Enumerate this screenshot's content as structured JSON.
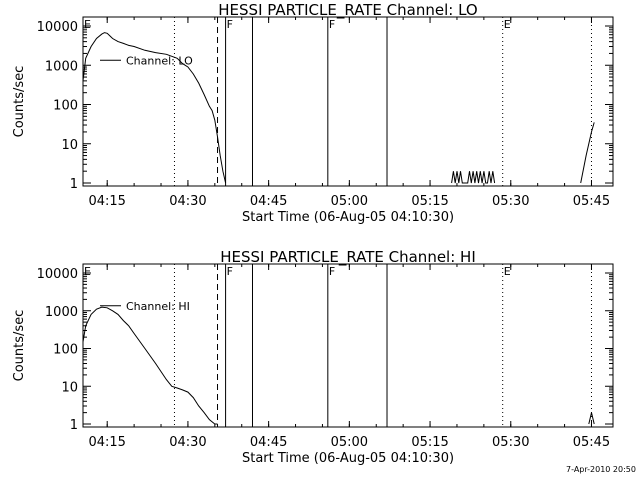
{
  "footer": "7-Apr-2010 20:50",
  "chart_data": [
    {
      "type": "line",
      "title": "HESSI PARTICLE_RATE Channel: LO",
      "xlabel": "Start Time (06-Aug-05 04:10:30)",
      "ylabel": "Counts/sec",
      "yscale": "log",
      "ylim": [
        1,
        10000
      ],
      "xlim": [
        "04:10:30",
        "05:49:00"
      ],
      "x_ticks": [
        "04:15",
        "04:30",
        "04:45",
        "05:00",
        "05:15",
        "05:30",
        "05:45"
      ],
      "y_ticks": [
        "1",
        "10",
        "100",
        "1000",
        "10000"
      ],
      "legend": "Channel: LO",
      "markers": [
        {
          "label": "E",
          "time": "04:10:30",
          "style": "none"
        },
        {
          "label": "",
          "time": "04:27:30",
          "style": "dotted"
        },
        {
          "label": "",
          "time": "04:35:30",
          "style": "dashed"
        },
        {
          "label": "F",
          "time": "04:37:00",
          "style": "solid"
        },
        {
          "label": "",
          "time": "04:42:00",
          "style": "solid"
        },
        {
          "label": "F",
          "time": "04:56:00",
          "style": "solid"
        },
        {
          "label": "",
          "time": "05:07:00",
          "style": "solid"
        },
        {
          "label": "E",
          "time": "05:28:30",
          "style": "dotted"
        },
        {
          "label": "",
          "time": "05:45:00",
          "style": "dotted"
        }
      ],
      "series": [
        {
          "x": [
            "04:10:30",
            "04:11:00",
            "04:12:00",
            "04:13:00",
            "04:14:00",
            "04:14:30",
            "04:15:00",
            "04:15:30",
            "04:16:00",
            "04:17:00",
            "04:18:00",
            "04:19:00",
            "04:20:00",
            "04:22:00",
            "04:24:00",
            "04:26:00",
            "04:28:00",
            "04:29:00",
            "04:30:00",
            "04:31:00",
            "04:32:00",
            "04:33:00",
            "04:34:00",
            "04:34:30",
            "04:35:00",
            "04:35:30",
            "04:36:00",
            "04:36:30",
            "04:37:00"
          ],
          "values": [
            400,
            1500,
            3000,
            4800,
            6200,
            6800,
            6500,
            5600,
            4800,
            4000,
            3600,
            3200,
            3000,
            2400,
            2100,
            1900,
            1500,
            1100,
            900,
            600,
            350,
            180,
            90,
            70,
            40,
            15,
            5,
            2,
            1
          ]
        },
        {
          "x": [
            "05:19:00",
            "05:19:20",
            "05:19:40",
            "05:20:00",
            "05:20:20",
            "05:20:40",
            "05:21:00",
            "05:22:00",
            "05:22:20",
            "05:22:40",
            "05:23:00",
            "05:23:20",
            "05:23:40",
            "05:24:00",
            "05:24:20",
            "05:24:40",
            "05:25:00",
            "05:25:20",
            "05:25:40",
            "05:26:00",
            "05:26:20",
            "05:26:40",
            "05:27:00"
          ],
          "values": [
            1,
            2,
            1,
            2,
            1,
            2,
            1,
            1,
            2,
            1,
            2,
            1,
            2,
            1,
            2,
            1,
            2,
            1,
            1,
            2,
            1,
            2,
            1
          ]
        },
        {
          "x": [
            "05:43:00",
            "05:44:00",
            "05:45:00",
            "05:45:30"
          ],
          "values": [
            1,
            5,
            20,
            35
          ]
        }
      ]
    },
    {
      "type": "line",
      "title": "HESSI PARTICLE_RATE Channel: HI",
      "xlabel": "Start Time (06-Aug-05 04:10:30)",
      "ylabel": "Counts/sec",
      "yscale": "log",
      "ylim": [
        1,
        10000
      ],
      "xlim": [
        "04:10:30",
        "05:49:00"
      ],
      "x_ticks": [
        "04:15",
        "04:30",
        "04:45",
        "05:00",
        "05:15",
        "05:30",
        "05:45"
      ],
      "y_ticks": [
        "1",
        "10",
        "100",
        "1000",
        "10000"
      ],
      "legend": "Channel: HI",
      "markers": [
        {
          "label": "E",
          "time": "04:10:30",
          "style": "none"
        },
        {
          "label": "",
          "time": "04:27:30",
          "style": "dotted"
        },
        {
          "label": "",
          "time": "04:35:30",
          "style": "dashed"
        },
        {
          "label": "F",
          "time": "04:37:00",
          "style": "solid"
        },
        {
          "label": "",
          "time": "04:42:00",
          "style": "solid"
        },
        {
          "label": "F",
          "time": "04:56:00",
          "style": "solid"
        },
        {
          "label": "",
          "time": "05:07:00",
          "style": "solid"
        },
        {
          "label": "E",
          "time": "05:28:30",
          "style": "dotted"
        },
        {
          "label": "",
          "time": "05:45:00",
          "style": "dotted"
        }
      ],
      "series": [
        {
          "x": [
            "04:10:30",
            "04:11:00",
            "04:12:00",
            "04:13:00",
            "04:14:00",
            "04:15:00",
            "04:16:00",
            "04:17:00",
            "04:18:00",
            "04:19:00",
            "04:20:00",
            "04:22:00",
            "04:24:00",
            "04:26:00",
            "04:27:00",
            "04:28:00",
            "04:29:00",
            "04:30:00",
            "04:31:00",
            "04:32:00",
            "04:33:00",
            "04:34:00",
            "04:35:00",
            "04:35:30"
          ],
          "values": [
            150,
            400,
            800,
            1100,
            1250,
            1200,
            1000,
            800,
            550,
            400,
            250,
            100,
            40,
            15,
            10,
            9,
            8,
            7,
            5,
            3,
            2,
            1.3,
            1,
            1
          ]
        },
        {
          "x": [
            "05:44:30",
            "05:45:00",
            "05:45:30"
          ],
          "values": [
            1,
            2,
            1
          ]
        }
      ]
    }
  ]
}
